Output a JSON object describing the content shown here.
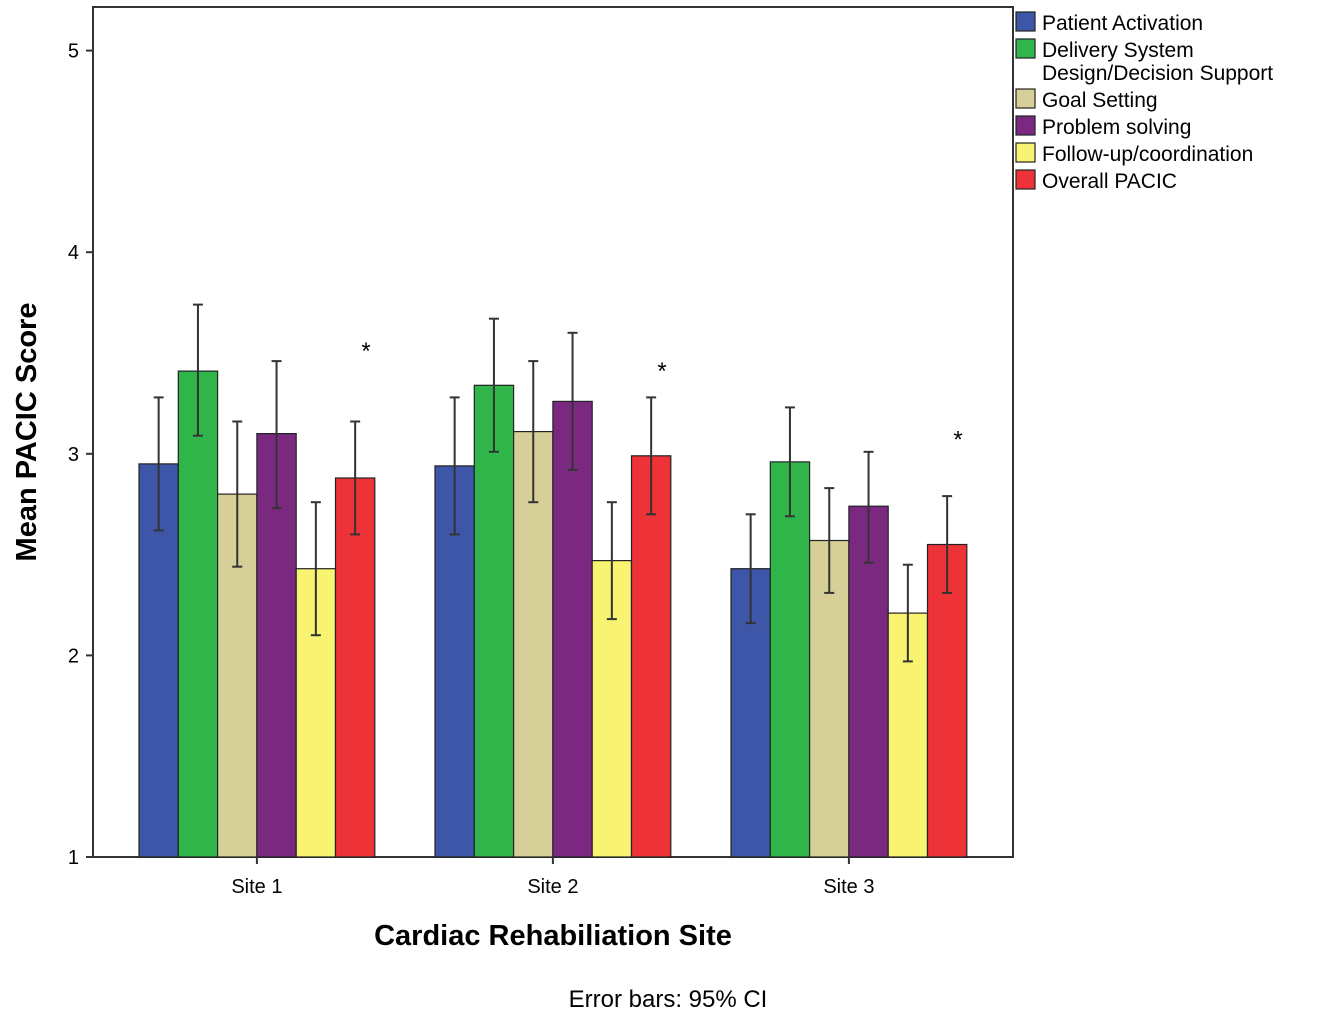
{
  "chart_data": {
    "type": "bar",
    "title": "",
    "xlabel": "Cardiac Rehabiliation Site",
    "ylabel": "Mean PACIC Score",
    "footnote": "Error bars: 95% CI",
    "categories": [
      "Site 1",
      "Site 2",
      "Site 3"
    ],
    "ylim": [
      1,
      5.2
    ],
    "yticks": [
      1,
      2,
      3,
      4,
      5
    ],
    "grid": false,
    "legend_position": "right",
    "series": [
      {
        "name": "Patient Activation",
        "color": "#3d56a8",
        "values": [
          2.95,
          2.94,
          2.43
        ],
        "ci_low": [
          2.62,
          2.6,
          2.16
        ],
        "ci_high": [
          3.28,
          3.28,
          2.7
        ]
      },
      {
        "name": "Delivery System Design/Decision Support",
        "color": "#2fb54a",
        "values": [
          3.41,
          3.34,
          2.96
        ],
        "ci_low": [
          3.09,
          3.01,
          2.69
        ],
        "ci_high": [
          3.74,
          3.67,
          3.23
        ]
      },
      {
        "name": "Goal Setting",
        "color": "#d6cf98",
        "values": [
          2.8,
          3.11,
          2.57
        ],
        "ci_low": [
          2.44,
          2.76,
          2.31
        ],
        "ci_high": [
          3.16,
          3.46,
          2.83
        ]
      },
      {
        "name": "Problem solving",
        "color": "#7a2880",
        "values": [
          3.1,
          3.26,
          2.74
        ],
        "ci_low": [
          2.73,
          2.92,
          2.46
        ],
        "ci_high": [
          3.46,
          3.6,
          3.01
        ]
      },
      {
        "name": "Follow-up/coordination",
        "color": "#f8f370",
        "values": [
          2.43,
          2.47,
          2.21
        ],
        "ci_low": [
          2.1,
          2.18,
          1.97
        ],
        "ci_high": [
          2.76,
          2.76,
          2.45
        ]
      },
      {
        "name": "Overall PACIC",
        "color": "#ee3338",
        "values": [
          2.88,
          2.99,
          2.55
        ],
        "ci_low": [
          2.6,
          2.7,
          2.31
        ],
        "ci_high": [
          3.16,
          3.28,
          2.79
        ]
      }
    ],
    "annotations": [
      {
        "text": "*",
        "category": "Site 1",
        "series": "Overall PACIC",
        "y": 3.55
      },
      {
        "text": "*",
        "category": "Site 2",
        "series": "Overall PACIC",
        "y": 3.45
      },
      {
        "text": "*",
        "category": "Site 3",
        "series": "Overall PACIC",
        "y": 3.11
      }
    ]
  }
}
